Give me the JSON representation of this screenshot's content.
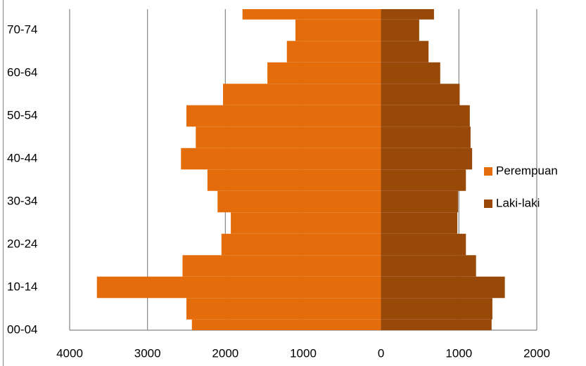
{
  "chart_data": {
    "type": "bar",
    "orientation": "horizontal",
    "stacked": true,
    "categories": [
      "00-04",
      null,
      "10-14",
      null,
      "20-24",
      null,
      "30-34",
      null,
      "40-44",
      null,
      "50-54",
      null,
      "60-64",
      null,
      "70-74",
      null
    ],
    "series": [
      {
        "name": "Perempuan",
        "color": "#e46c0a",
        "values": [
          -2430,
          -2500,
          -3650,
          -2550,
          -2050,
          -1930,
          -2100,
          -2230,
          -2570,
          -2380,
          -2500,
          -2030,
          -1460,
          -1210,
          -1100,
          -1780
        ]
      },
      {
        "name": "Laki-laki",
        "color": "#984807",
        "values": [
          1420,
          1430,
          1590,
          1220,
          1090,
          980,
          990,
          1090,
          1170,
          1150,
          1140,
          1010,
          760,
          610,
          490,
          680
        ]
      }
    ],
    "xlim": [
      -4000,
      2000
    ],
    "xticks": [
      {
        "value": -4000,
        "label": "4000"
      },
      {
        "value": -3000,
        "label": "3000"
      },
      {
        "value": -2000,
        "label": "2000"
      },
      {
        "value": -1000,
        "label": "1000"
      },
      0,
      1000,
      2000
    ],
    "grid": true,
    "legend": "right"
  }
}
